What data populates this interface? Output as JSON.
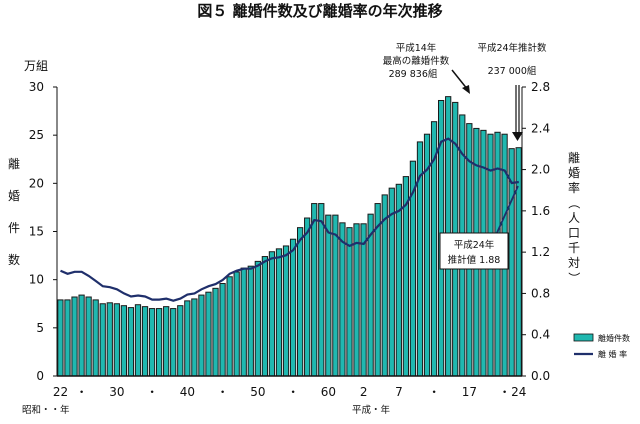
{
  "chart_data": {
    "type": "bar+line",
    "title": "図５ 離婚件数及び離婚率の年次推移",
    "left_axis": {
      "unit": "万組",
      "label": "離婚件数",
      "range": [
        0,
        30
      ],
      "ticks": [
        "0",
        "5",
        "10",
        "15",
        "20",
        "25",
        "30"
      ]
    },
    "right_axis": {
      "label": "離婚率（人口千対）",
      "range": [
        0.0,
        2.8
      ],
      "ticks": [
        "0.0",
        "0.4",
        "0.8",
        "1.2",
        "1.6",
        "2.0",
        "2.4",
        "2.8"
      ]
    },
    "x_ticks": [
      {
        "label": "22",
        "year": 1947
      },
      {
        "label": "・",
        "year": 1950
      },
      {
        "label": "30",
        "year": 1955
      },
      {
        "label": "・",
        "year": 1960
      },
      {
        "label": "40",
        "year": 1965
      },
      {
        "label": "・",
        "year": 1970
      },
      {
        "label": "50",
        "year": 1975
      },
      {
        "label": "・",
        "year": 1980
      },
      {
        "label": "60",
        "year": 1985
      },
      {
        "label": "2",
        "year": 1990
      },
      {
        "label": "7",
        "year": 1995
      },
      {
        "label": "・",
        "year": 2000
      },
      {
        "label": "17",
        "year": 2005
      },
      {
        "label": "・",
        "year": 2010
      },
      {
        "label": "24",
        "year": 2012
      }
    ],
    "era_labels": {
      "showa": "昭和・・年",
      "heisei": "平成・年"
    },
    "years": [
      1947,
      1948,
      1949,
      1950,
      1951,
      1952,
      1953,
      1954,
      1955,
      1956,
      1957,
      1958,
      1959,
      1960,
      1961,
      1962,
      1963,
      1964,
      1965,
      1966,
      1967,
      1968,
      1969,
      1970,
      1971,
      1972,
      1973,
      1974,
      1975,
      1976,
      1977,
      1978,
      1979,
      1980,
      1981,
      1982,
      1983,
      1984,
      1985,
      1986,
      1987,
      1988,
      1989,
      1990,
      1991,
      1992,
      1993,
      1994,
      1995,
      1996,
      1997,
      1998,
      1999,
      2000,
      2001,
      2002,
      2003,
      2004,
      2005,
      2006,
      2007,
      2008,
      2009,
      2010,
      2011,
      2012
    ],
    "series": [
      {
        "name": "離婚件数",
        "type": "bar",
        "axis": "left",
        "values": [
          7.9,
          7.9,
          8.2,
          8.4,
          8.2,
          7.9,
          7.5,
          7.6,
          7.5,
          7.3,
          7.1,
          7.4,
          7.2,
          7.0,
          7.0,
          7.2,
          7.0,
          7.3,
          7.8,
          8.0,
          8.4,
          8.7,
          9.1,
          9.6,
          10.3,
          10.8,
          11.2,
          11.4,
          11.9,
          12.4,
          12.9,
          13.2,
          13.5,
          14.2,
          15.4,
          16.4,
          17.9,
          17.9,
          16.7,
          16.7,
          15.9,
          15.4,
          15.8,
          15.8,
          16.8,
          17.9,
          18.8,
          19.5,
          19.9,
          20.7,
          22.3,
          24.3,
          25.1,
          26.4,
          28.6,
          29.0,
          28.4,
          27.1,
          26.2,
          25.7,
          25.5,
          25.1,
          25.3,
          25.1,
          23.6,
          23.7
        ]
      },
      {
        "name": "離 婚 率",
        "type": "line",
        "axis": "right",
        "values": [
          1.02,
          0.99,
          1.01,
          1.01,
          0.97,
          0.92,
          0.87,
          0.86,
          0.84,
          0.8,
          0.77,
          0.78,
          0.77,
          0.74,
          0.74,
          0.75,
          0.73,
          0.75,
          0.79,
          0.8,
          0.84,
          0.87,
          0.89,
          0.93,
          0.99,
          1.02,
          1.04,
          1.04,
          1.07,
          1.11,
          1.14,
          1.15,
          1.17,
          1.22,
          1.32,
          1.39,
          1.51,
          1.5,
          1.39,
          1.37,
          1.3,
          1.26,
          1.29,
          1.28,
          1.37,
          1.45,
          1.52,
          1.57,
          1.6,
          1.66,
          1.78,
          1.94,
          2.0,
          2.1,
          2.27,
          2.3,
          2.25,
          2.15,
          2.08,
          2.04,
          2.02,
          1.99,
          2.01,
          1.99,
          1.87,
          1.88
        ]
      }
    ],
    "annotations": {
      "peak": [
        "平成14年",
        "最高の離婚件数",
        "289 836組"
      ],
      "estimate_count": [
        "平成24年推計数",
        "237 000組"
      ],
      "estimate_rate": [
        "平成24年",
        "推計値 1.88"
      ]
    },
    "legend_placement": "bottom-right",
    "colors": {
      "bar": "#20b8b0",
      "bar_edge": "#1a1a1a",
      "line": "#1f2f6b"
    }
  }
}
